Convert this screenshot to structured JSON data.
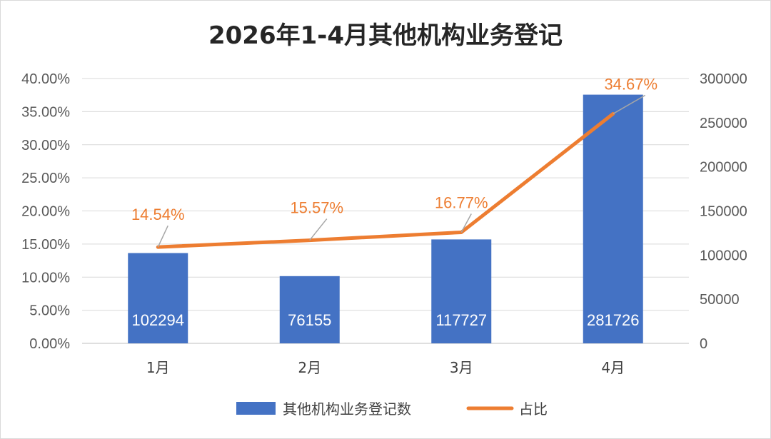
{
  "chart_data": {
    "type": "bar",
    "title": "2026年1-4月其他机构业务登记",
    "categories": [
      "1月",
      "2月",
      "3月",
      "4月"
    ],
    "series": [
      {
        "name": "其他机构业务登记数",
        "type": "bar",
        "axis": "right",
        "values": [
          102294,
          76155,
          117727,
          281726
        ],
        "labels": [
          "102294",
          "76155",
          "117727",
          "281726"
        ],
        "color": "#4472c4"
      },
      {
        "name": "占比",
        "type": "line",
        "axis": "left",
        "values": [
          14.54,
          15.57,
          16.77,
          34.67
        ],
        "labels": [
          "14.54%",
          "15.57%",
          "16.77%",
          "34.67%"
        ],
        "color": "#ed7d31"
      }
    ],
    "y_left": {
      "min": 0,
      "max": 40,
      "ticks": [
        "0.00%",
        "5.00%",
        "10.00%",
        "15.00%",
        "20.00%",
        "25.00%",
        "30.00%",
        "35.00%",
        "40.00%"
      ]
    },
    "y_right": {
      "min": 0,
      "max": 300000,
      "ticks": [
        "0",
        "50000",
        "100000",
        "150000",
        "200000",
        "250000",
        "300000"
      ]
    },
    "grid": true,
    "legend": "bottom"
  }
}
